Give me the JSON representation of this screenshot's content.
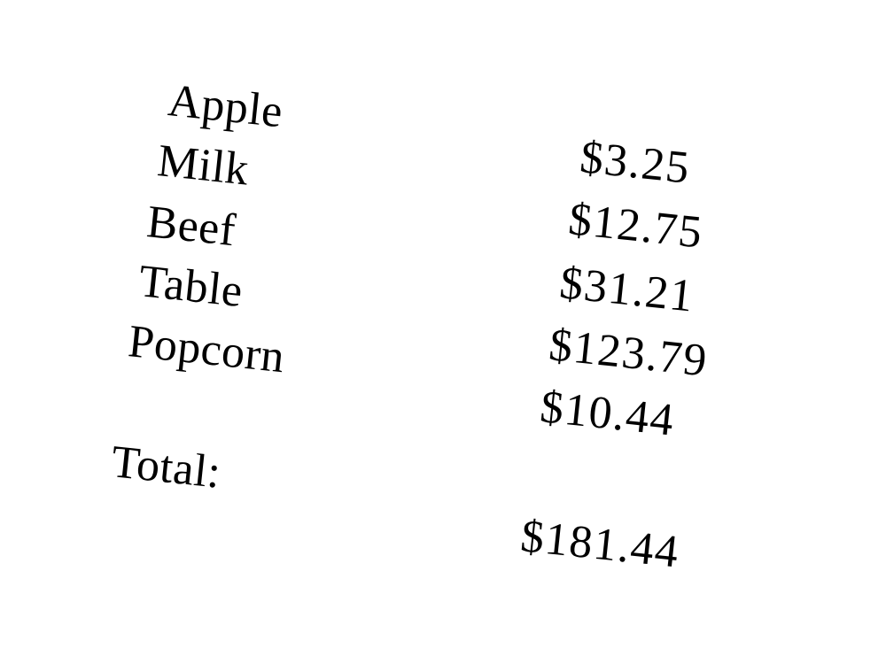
{
  "items": [
    {
      "name": "Apple"
    },
    {
      "name": "Milk"
    },
    {
      "name": "Beef"
    },
    {
      "name": "Table"
    },
    {
      "name": "Popcorn"
    }
  ],
  "prices": [
    "$3.25",
    "$12.75",
    "$31.21",
    "$123.79",
    "$10.44"
  ],
  "total": {
    "label": "Total:",
    "value": "$181.44"
  }
}
